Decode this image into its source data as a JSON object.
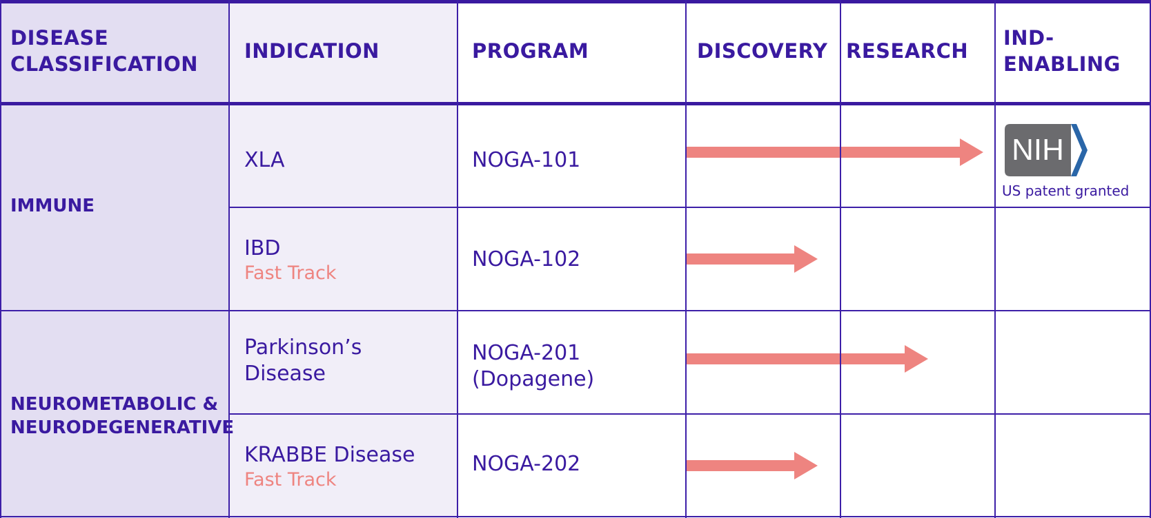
{
  "colors": {
    "accent": "#3a1aa0",
    "arrow": "#ee8480",
    "classification_bg": "#e3def2",
    "indication_bg": "#f1eef8",
    "nih_grey": "#6b6b6e",
    "nih_blue": "#2a66a8"
  },
  "headers": {
    "disease_classification": [
      "DISEASE",
      "CLASSIFICATION"
    ],
    "indication": "INDICATION",
    "program": "PROGRAM",
    "discovery": "DISCOVERY",
    "research": "RESEARCH",
    "ind_enabling": [
      "IND-",
      "ENABLING"
    ]
  },
  "categories": {
    "immune": "IMMUNE",
    "neuro": [
      "NEUROMETABOLIC &",
      "NEURODEGENERATIVE"
    ]
  },
  "rows": [
    {
      "indication": "XLA",
      "program": "NOGA-101",
      "stage_reached": "IND-Enabling (entering)"
    },
    {
      "indication": "IBD",
      "designation": "Fast Track",
      "program": "NOGA-102",
      "stage_reached": "Discovery (late)"
    },
    {
      "indication": [
        "Parkinson’s",
        "Disease"
      ],
      "program": [
        "NOGA-201",
        "(Dopagene)"
      ],
      "stage_reached": "Research (late)"
    },
    {
      "indication": "KRABBE Disease",
      "designation": "Fast Track",
      "program": "NOGA-202",
      "stage_reached": "Discovery (late)"
    }
  ],
  "nih": {
    "logo_text": "NIH",
    "icon": "nih-logo",
    "caption": "US patent granted"
  }
}
